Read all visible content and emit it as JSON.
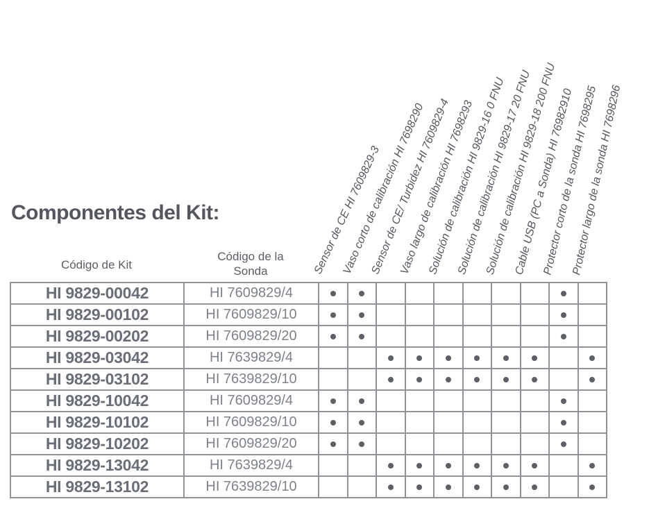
{
  "title": "Componentes del Kit:",
  "table": {
    "kit_header": "Código de Kit",
    "sonda_header": "Código de la Sonda",
    "component_headers": [
      "Sensor de CE HI 7609829-3",
      "Vaso corto de calibración HI 7698290",
      "Sensor de CE/ Turbidez HI 7609829-4",
      "Vaso largo de calibración HI 7698293",
      "Solución de calibración HI 9829-16 0 FNU",
      "Solución de calibración HI 9829-17 20 FNU",
      "Solución de calibración HI 9829-18 200 FNU",
      "Cable USB (PC a Sonda) HI 76982910",
      "Protector corto de la sonda HI 7698295",
      "Protector largo de la sonda HI 7698296"
    ],
    "rows": [
      {
        "kit": "HI 9829-00042",
        "sonda": "HI 7609829/4",
        "components": [
          1,
          1,
          0,
          0,
          0,
          0,
          0,
          0,
          1,
          0
        ]
      },
      {
        "kit": "HI 9829-00102",
        "sonda": "HI 7609829/10",
        "components": [
          1,
          1,
          0,
          0,
          0,
          0,
          0,
          0,
          1,
          0
        ]
      },
      {
        "kit": "HI 9829-00202",
        "sonda": "HI 7609829/20",
        "components": [
          1,
          1,
          0,
          0,
          0,
          0,
          0,
          0,
          1,
          0
        ]
      },
      {
        "kit": "HI 9829-03042",
        "sonda": "HI 7639829/4",
        "components": [
          0,
          0,
          1,
          1,
          1,
          1,
          1,
          1,
          0,
          1
        ]
      },
      {
        "kit": "HI 9829-03102",
        "sonda": "HI 7639829/10",
        "components": [
          0,
          0,
          1,
          1,
          1,
          1,
          1,
          1,
          0,
          1
        ]
      },
      {
        "kit": "HI 9829-10042",
        "sonda": "HI 7609829/4",
        "components": [
          1,
          1,
          0,
          0,
          0,
          0,
          0,
          0,
          1,
          0
        ]
      },
      {
        "kit": "HI 9829-10102",
        "sonda": "HI 7609829/10",
        "components": [
          1,
          1,
          0,
          0,
          0,
          0,
          0,
          0,
          1,
          0
        ]
      },
      {
        "kit": "HI 9829-10202",
        "sonda": "HI 7609829/20",
        "components": [
          1,
          1,
          0,
          0,
          0,
          0,
          0,
          0,
          1,
          0
        ]
      },
      {
        "kit": "HI 9829-13042",
        "sonda": "HI 7639829/4",
        "components": [
          0,
          0,
          1,
          1,
          1,
          1,
          1,
          1,
          0,
          1
        ]
      },
      {
        "kit": "HI 9829-13102",
        "sonda": "HI 7639829/10",
        "components": [
          0,
          0,
          1,
          1,
          1,
          1,
          1,
          1,
          0,
          1
        ]
      }
    ]
  },
  "colors": {
    "background": "#ffffff",
    "title_text": "#54575d",
    "header_text": "#5a5e64",
    "rotated_text": "#54575d",
    "kit_text": "#696e77",
    "sonda_text": "#7d828a",
    "grid": "#8f9297",
    "dot": "#5d6066"
  }
}
